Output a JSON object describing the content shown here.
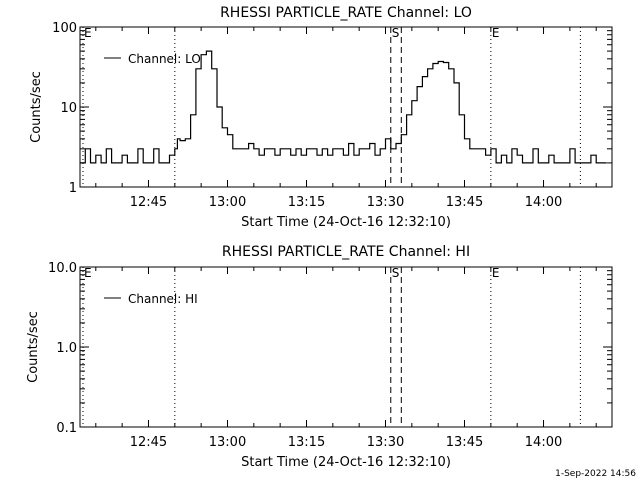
{
  "footer_timestamp": "1-Sep-2022 14:56",
  "chart_data": [
    {
      "type": "line",
      "title": "RHESSI PARTICLE_RATE Channel: LO",
      "xlabel": "Start Time (24-Oct-16 12:32:10)",
      "ylabel": "Counts/sec",
      "yscale": "log",
      "ylim": [
        1,
        100
      ],
      "xlim_minutes_after_1232": [
        0,
        101
      ],
      "x_tick_labels": [
        "12:45",
        "13:00",
        "13:15",
        "13:30",
        "13:45",
        "14:00"
      ],
      "y_tick_labels": [
        "1",
        "10",
        "100"
      ],
      "legend": "Channel: LO",
      "markers": [
        {
          "label": "E",
          "time": "12:32",
          "style": "dotted"
        },
        {
          "label": "",
          "time": "12:50",
          "style": "dotted"
        },
        {
          "label": "S",
          "time": "13:31",
          "style": "dashed"
        },
        {
          "label": "",
          "time": "13:33",
          "style": "dashed"
        },
        {
          "label": "E",
          "time": "13:50",
          "style": "dotted"
        },
        {
          "label": "",
          "time": "14:07",
          "style": "dotted"
        }
      ],
      "series": [
        {
          "name": "Channel: LO",
          "x_minutes": [
            0,
            1,
            2,
            3,
            4,
            5,
            6,
            7,
            8,
            9,
            10,
            11,
            12,
            13,
            14,
            15,
            16,
            17,
            18,
            18.5,
            19,
            20,
            21,
            22,
            23,
            24,
            25,
            26,
            27,
            28,
            29,
            30,
            31,
            32,
            33,
            34,
            35,
            36,
            37,
            38,
            39,
            40,
            41,
            42,
            43,
            44,
            45,
            46,
            47,
            48,
            49,
            50,
            51,
            52,
            53,
            54,
            55,
            56,
            57,
            58,
            59,
            60,
            61,
            62,
            63,
            64,
            65,
            66,
            67,
            68,
            69,
            70,
            71,
            72,
            73,
            74,
            75,
            76,
            77,
            78,
            79,
            80,
            81,
            82,
            83,
            84,
            85,
            86,
            87,
            88,
            89,
            90,
            91,
            92,
            93,
            94,
            95,
            96,
            97,
            98,
            99
          ],
          "y": [
            2,
            3,
            2,
            2.5,
            2,
            3,
            2,
            2,
            2.5,
            2,
            2,
            3,
            2,
            2,
            3,
            2,
            2,
            2.5,
            3,
            4,
            3.8,
            4,
            8,
            30,
            45,
            50,
            30,
            10,
            5.5,
            4.5,
            3,
            3,
            3,
            3.5,
            3,
            2.5,
            3,
            3,
            2.5,
            3,
            3,
            2.5,
            3,
            2.5,
            3,
            3,
            2.5,
            3,
            2.5,
            3,
            3,
            2.5,
            3.5,
            2.5,
            3,
            3,
            3.5,
            2.5,
            3,
            4,
            3,
            3.5,
            4.5,
            8,
            12,
            18,
            24,
            30,
            35,
            37,
            36,
            30,
            20,
            8,
            4,
            3,
            3,
            3,
            2.5,
            3,
            2,
            2.5,
            2,
            3,
            2.5,
            2,
            2,
            3,
            2,
            2,
            2.5,
            2,
            2,
            2,
            3,
            2,
            2,
            2,
            2.5,
            2,
            2
          ]
        }
      ]
    },
    {
      "type": "line",
      "title": "RHESSI PARTICLE_RATE Channel: HI",
      "xlabel": "Start Time (24-Oct-16 12:32:10)",
      "ylabel": "Counts/sec",
      "yscale": "log",
      "ylim": [
        0.1,
        10
      ],
      "xlim_minutes_after_1232": [
        0,
        101
      ],
      "x_tick_labels": [
        "12:45",
        "13:00",
        "13:15",
        "13:30",
        "13:45",
        "14:00"
      ],
      "y_tick_labels": [
        "0.1",
        "1.0",
        "10.0"
      ],
      "legend": "Channel: HI",
      "markers": [
        {
          "label": "E",
          "time": "12:32",
          "style": "dotted"
        },
        {
          "label": "",
          "time": "12:50",
          "style": "dotted"
        },
        {
          "label": "S",
          "time": "13:31",
          "style": "dashed"
        },
        {
          "label": "",
          "time": "13:33",
          "style": "dashed"
        },
        {
          "label": "E",
          "time": "13:50",
          "style": "dotted"
        },
        {
          "label": "",
          "time": "14:07",
          "style": "dotted"
        }
      ],
      "series": [
        {
          "name": "Channel: HI",
          "x_minutes": [],
          "y": []
        }
      ]
    }
  ]
}
